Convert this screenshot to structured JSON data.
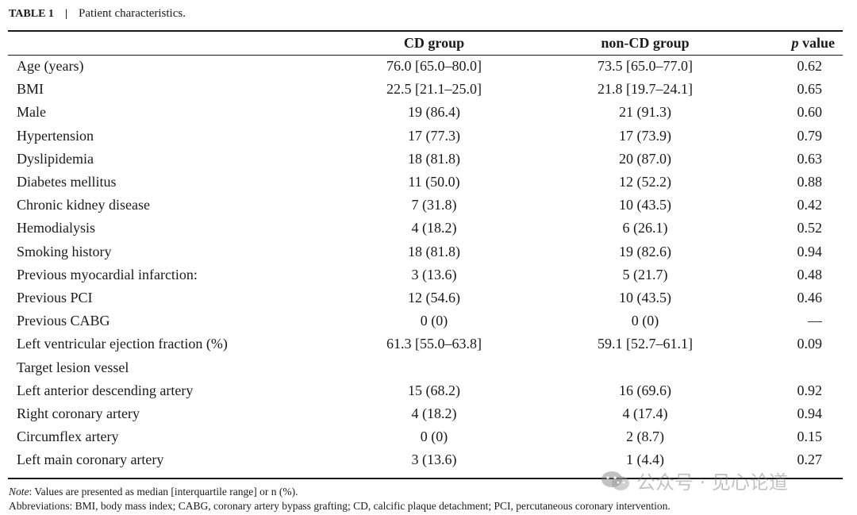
{
  "caption": {
    "label": "TABLE 1",
    "separator": "|",
    "title": "Patient characteristics."
  },
  "table": {
    "headers": {
      "variable": "",
      "cd": "CD group",
      "noncd": "non-CD group",
      "p_italic": "p",
      "p_rest": " value"
    },
    "rows": [
      {
        "label": "Age (years)",
        "cd": "76.0 [65.0–80.0]",
        "noncd": "73.5 [65.0–77.0]",
        "p": "0.62"
      },
      {
        "label": "BMI",
        "cd": "22.5 [21.1–25.0]",
        "noncd": "21.8 [19.7–24.1]",
        "p": "0.65"
      },
      {
        "label": "Male",
        "cd": "19 (86.4)",
        "noncd": "21 (91.3)",
        "p": "0.60"
      },
      {
        "label": "Hypertension",
        "cd": "17 (77.3)",
        "noncd": "17 (73.9)",
        "p": "0.79"
      },
      {
        "label": "Dyslipidemia",
        "cd": "18 (81.8)",
        "noncd": "20 (87.0)",
        "p": "0.63"
      },
      {
        "label": "Diabetes mellitus",
        "cd": "11 (50.0)",
        "noncd": "12 (52.2)",
        "p": "0.88"
      },
      {
        "label": "Chronic kidney disease",
        "cd": "7 (31.8)",
        "noncd": "10 (43.5)",
        "p": "0.42"
      },
      {
        "label": "Hemodialysis",
        "cd": "4 (18.2)",
        "noncd": "6 (26.1)",
        "p": "0.52"
      },
      {
        "label": "Smoking history",
        "cd": "18 (81.8)",
        "noncd": "19 (82.6)",
        "p": "0.94"
      },
      {
        "label": "Previous myocardial infarction:",
        "cd": "3 (13.6)",
        "noncd": "5 (21.7)",
        "p": "0.48"
      },
      {
        "label": "Previous PCI",
        "cd": "12 (54.6)",
        "noncd": "10 (43.5)",
        "p": "0.46"
      },
      {
        "label": "Previous CABG",
        "cd": "0 (0)",
        "noncd": "0 (0)",
        "p": "—"
      },
      {
        "label": "Left ventricular ejection fraction (%)",
        "cd": "61.3 [55.0–63.8]",
        "noncd": "59.1 [52.7–61.1]",
        "p": "0.09"
      },
      {
        "label": "Target lesion vessel",
        "cd": "",
        "noncd": "",
        "p": ""
      },
      {
        "label": "Left anterior descending artery",
        "cd": "15 (68.2)",
        "noncd": "16 (69.6)",
        "p": "0.92"
      },
      {
        "label": "Right coronary artery",
        "cd": "4 (18.2)",
        "noncd": "4 (17.4)",
        "p": "0.94"
      },
      {
        "label": "Circumflex artery",
        "cd": "0 (0)",
        "noncd": "2 (8.7)",
        "p": "0.15"
      },
      {
        "label": "Left main coronary artery",
        "cd": "3 (13.6)",
        "noncd": "1 (4.4)",
        "p": "0.27"
      }
    ]
  },
  "notes": {
    "note_label": "Note",
    "note_text": ": Values are presented as median [interquartile range] or n (%).",
    "abbreviations": "Abbreviations: BMI, body mass index; CABG, coronary artery bypass grafting; CD, calcific plaque detachment; PCI, percutaneous coronary intervention."
  },
  "watermark": {
    "icon": "wechat-icon",
    "text": "公众号 · 见心论道"
  }
}
